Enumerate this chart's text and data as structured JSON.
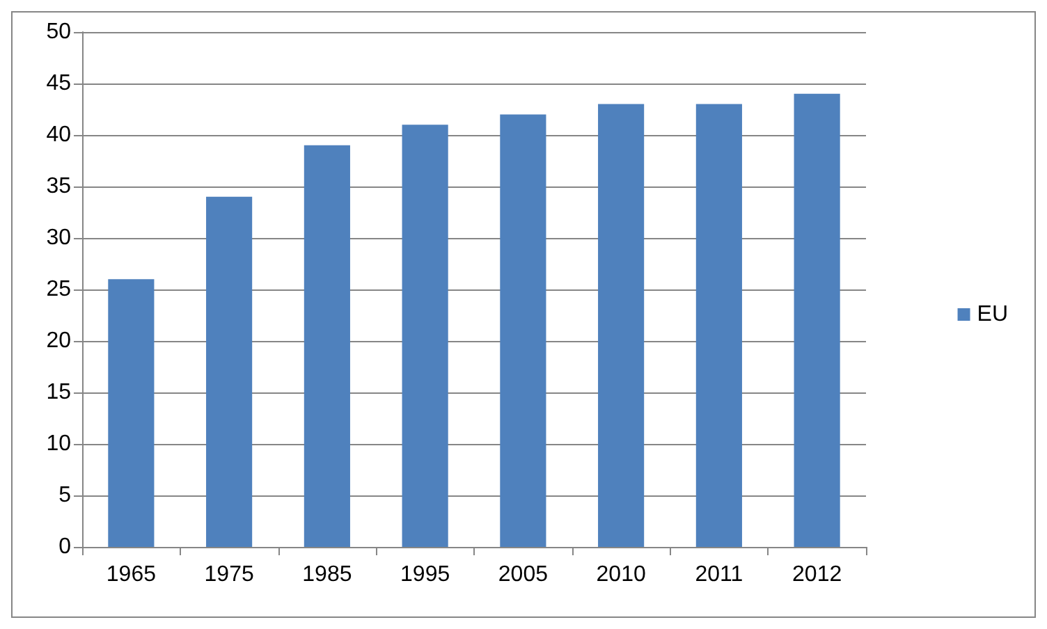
{
  "chart_data": {
    "type": "bar",
    "categories": [
      "1965",
      "1975",
      "1985",
      "1995",
      "2005",
      "2010",
      "2011",
      "2012"
    ],
    "series": [
      {
        "name": "EU",
        "color": "#4f81bd",
        "values": [
          26,
          34,
          39,
          41,
          42,
          43,
          43,
          44
        ]
      }
    ],
    "ylim": [
      0,
      50
    ],
    "yticks": [
      0,
      5,
      10,
      15,
      20,
      25,
      30,
      35,
      40,
      45,
      50
    ],
    "grid": "y",
    "legend": "right"
  }
}
